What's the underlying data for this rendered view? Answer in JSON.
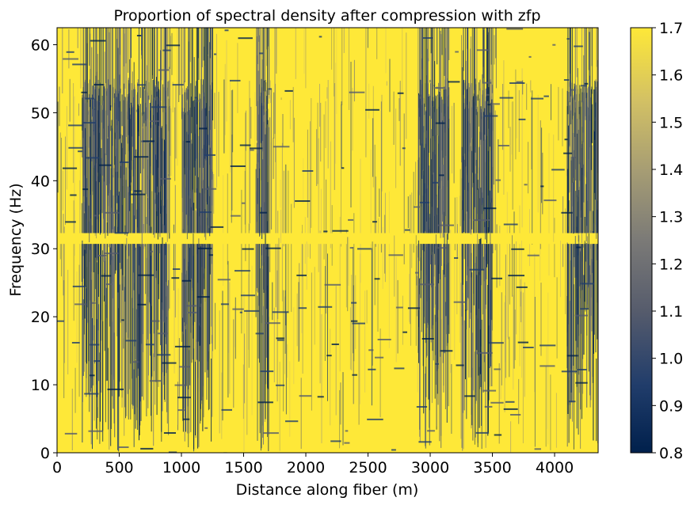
{
  "chart_data": {
    "type": "heatmap",
    "title": "Proportion of spectral density after compression with zfp",
    "xlabel": "Distance along fiber (m)",
    "ylabel": "Frequency (Hz)",
    "xlim": [
      0,
      4350
    ],
    "ylim": [
      0,
      62.5
    ],
    "x_ticks": [
      0,
      500,
      1000,
      1500,
      2000,
      2500,
      3000,
      3500,
      4000
    ],
    "y_ticks": [
      0,
      10,
      20,
      30,
      40,
      50,
      60
    ],
    "colorbar": {
      "min": 0.8,
      "max": 1.7,
      "ticks": [
        "0.8",
        "0.9",
        "1.0",
        "1.1",
        "1.2",
        "1.3",
        "1.4",
        "1.5",
        "1.6",
        "1.7"
      ],
      "colormap": "cividis",
      "colors": [
        "#00204c",
        "#213d6b",
        "#555b6c",
        "#7b7a77",
        "#a59c74",
        "#d3c164",
        "#fee838"
      ]
    },
    "grid": false,
    "features": {
      "bright_band_hz": 31.5,
      "dense_low_regions_m": [
        [
          200,
          900
        ],
        [
          1000,
          1250
        ],
        [
          1600,
          1700
        ],
        [
          2900,
          3150
        ],
        [
          3250,
          3500
        ],
        [
          4100,
          4350
        ]
      ],
      "mostly_saturated_above_hz": 55
    }
  }
}
